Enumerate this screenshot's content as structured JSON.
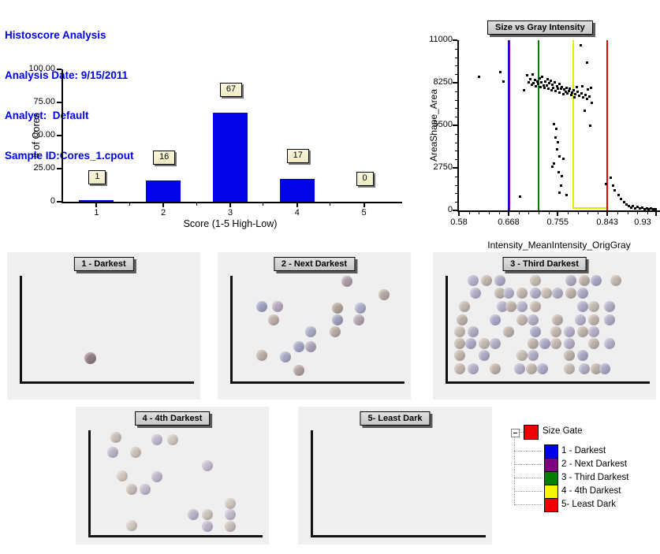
{
  "header": {
    "title": "Histoscore Analysis",
    "analysis_date": "Analysis Date: 9/15/2011",
    "analyst": "Analyst:  Default",
    "sample_id": "Sample ID:Cores_1.cpout"
  },
  "colors": {
    "header_text": "#0000f0",
    "bar_fill": "#0404e8",
    "gate_blue": "#2404c8",
    "gate_purple": "#800080",
    "gate_green": "#008000",
    "gate_yellow": "#e8e800",
    "gate_red": "#f00000",
    "panel_bg": "#f0eff0"
  },
  "chart_data": [
    {
      "type": "bar",
      "title": "",
      "categories": [
        "1",
        "2",
        "3",
        "4",
        "5"
      ],
      "values": [
        1,
        16,
        67,
        17,
        0
      ],
      "value_labels": [
        "1",
        "16",
        "67",
        "17",
        "0"
      ],
      "xlabel": "Score (1-5 High-Low)",
      "ylabel": "# of Cores",
      "ylim": [
        0,
        100
      ],
      "yticks": [
        0,
        25,
        50,
        75,
        100
      ],
      "ytick_labels": [
        "0",
        "25.00",
        "50.00",
        "75.00",
        "100.00"
      ],
      "grid": false,
      "bar_color": "#0404e8"
    },
    {
      "type": "scatter",
      "title": "Size vs Gray Intensity",
      "xlabel": "Intensity_MeanIntensity_OrigGray",
      "ylabel": "AreaShape_Area",
      "xlim": [
        0.58,
        0.935
      ],
      "ylim": [
        0,
        11000
      ],
      "xticks": [
        0.58,
        0.668,
        0.755,
        0.843,
        0.93
      ],
      "xtick_labels": [
        "0.58",
        "0.668",
        "0.755",
        "0.843",
        "0.93"
      ],
      "yticks": [
        0,
        2750,
        5500,
        8250,
        11000
      ],
      "ytick_labels": [
        "0",
        "2750",
        "5500",
        "8250",
        "11000"
      ],
      "grid": false,
      "marker": "square",
      "marker_color": "#000000",
      "gates": {
        "blue_line_x": 0.668,
        "purple_line_x": 0.6695,
        "green_line_x": 0.721,
        "yellow_box_x": [
          0.782,
          0.84
        ],
        "yellow_box_y": [
          80,
          11000
        ],
        "red_line_x": 0.843
      },
      "points": [
        [
          0.615,
          8650
        ],
        [
          0.652,
          8980
        ],
        [
          0.658,
          8350
        ],
        [
          0.688,
          900
        ],
        [
          0.695,
          7800
        ],
        [
          0.7,
          8750
        ],
        [
          0.703,
          8300
        ],
        [
          0.706,
          8520
        ],
        [
          0.708,
          8150
        ],
        [
          0.71,
          8820
        ],
        [
          0.712,
          8230
        ],
        [
          0.714,
          8460
        ],
        [
          0.716,
          8050
        ],
        [
          0.718,
          8330
        ],
        [
          0.72,
          8180
        ],
        [
          0.722,
          8540
        ],
        [
          0.724,
          7980
        ],
        [
          0.726,
          8280
        ],
        [
          0.727,
          8640
        ],
        [
          0.729,
          8120
        ],
        [
          0.731,
          7930
        ],
        [
          0.733,
          8370
        ],
        [
          0.735,
          8080
        ],
        [
          0.736,
          8510
        ],
        [
          0.738,
          7870
        ],
        [
          0.74,
          8230
        ],
        [
          0.742,
          8420
        ],
        [
          0.744,
          7780
        ],
        [
          0.745,
          8130
        ],
        [
          0.747,
          7960
        ],
        [
          0.749,
          8310
        ],
        [
          0.751,
          7720
        ],
        [
          0.753,
          8060
        ],
        [
          0.755,
          7910
        ],
        [
          0.757,
          8210
        ],
        [
          0.758,
          7640
        ],
        [
          0.76,
          7870
        ],
        [
          0.762,
          8010
        ],
        [
          0.764,
          7540
        ],
        [
          0.766,
          7820
        ],
        [
          0.768,
          7680
        ],
        [
          0.77,
          7930
        ],
        [
          0.772,
          7570
        ],
        [
          0.774,
          7720
        ],
        [
          0.776,
          7870
        ],
        [
          0.778,
          7480
        ],
        [
          0.78,
          7630
        ],
        [
          0.782,
          7790
        ],
        [
          0.784,
          7350
        ],
        [
          0.786,
          7530
        ],
        [
          0.788,
          7980
        ],
        [
          0.79,
          7670
        ],
        [
          0.793,
          7430
        ],
        [
          0.796,
          7580
        ],
        [
          0.798,
          8060
        ],
        [
          0.8,
          7330
        ],
        [
          0.803,
          7480
        ],
        [
          0.806,
          7230
        ],
        [
          0.808,
          7850
        ],
        [
          0.81,
          7380
        ],
        [
          0.813,
          7960
        ],
        [
          0.795,
          10700
        ],
        [
          0.806,
          9580
        ],
        [
          0.802,
          6480
        ],
        [
          0.812,
          5520
        ],
        [
          0.815,
          6960
        ],
        [
          0.748,
          5620
        ],
        [
          0.752,
          5280
        ],
        [
          0.75,
          4720
        ],
        [
          0.755,
          4420
        ],
        [
          0.753,
          3960
        ],
        [
          0.757,
          3520
        ],
        [
          0.748,
          3080
        ],
        [
          0.745,
          2870
        ],
        [
          0.756,
          2520
        ],
        [
          0.76,
          1620
        ],
        [
          0.758,
          1160
        ],
        [
          0.762,
          2260
        ],
        [
          0.764,
          3340
        ],
        [
          0.77,
          1000
        ],
        [
          0.84,
          1720
        ],
        [
          0.848,
          2120
        ],
        [
          0.852,
          1630
        ],
        [
          0.856,
          1320
        ],
        [
          0.862,
          1010
        ],
        [
          0.867,
          760
        ],
        [
          0.872,
          560
        ],
        [
          0.876,
          410
        ],
        [
          0.88,
          310
        ],
        [
          0.884,
          210
        ],
        [
          0.888,
          290
        ],
        [
          0.892,
          160
        ],
        [
          0.896,
          230
        ],
        [
          0.9,
          130
        ],
        [
          0.904,
          190
        ],
        [
          0.908,
          110
        ],
        [
          0.912,
          170
        ],
        [
          0.916,
          95
        ],
        [
          0.92,
          150
        ],
        [
          0.924,
          80
        ],
        [
          0.928,
          120
        ]
      ]
    }
  ],
  "panels": [
    {
      "title": "1 - Darkest",
      "core_count": 1,
      "palette": [
        "#8d7a7e"
      ],
      "dots": [
        [
          43,
          72
        ]
      ]
    },
    {
      "title": "2 - Next Darkest",
      "core_count": 16,
      "palette": [
        "#a89aa4",
        "#b2a79e",
        "#9aa0bd",
        "#b3a6ba",
        "#ad9f93",
        "#a7a9c6",
        "#baaba1",
        "#9d9cb8",
        "#b0a3ad",
        "#a5a8c2",
        "#b5a89f",
        "#9fa2bf",
        "#aaa0b5",
        "#b8ada3",
        "#a3a5c0",
        "#ae9f98"
      ],
      "dots": [
        [
          67,
          20
        ],
        [
          86,
          29
        ],
        [
          23,
          37
        ],
        [
          31,
          37
        ],
        [
          62,
          38
        ],
        [
          74,
          38
        ],
        [
          29,
          46
        ],
        [
          62,
          46
        ],
        [
          73,
          46
        ],
        [
          48,
          54
        ],
        [
          61,
          54
        ],
        [
          42,
          64
        ],
        [
          48,
          64
        ],
        [
          23,
          70
        ],
        [
          35,
          71
        ],
        [
          42,
          80
        ]
      ]
    },
    {
      "title": "3 - Third Darkest",
      "core_count": 67,
      "palette": [
        "#b4aec6",
        "#beb2a8",
        "#aaa8c4",
        "#c2b8ae",
        "#b0abc0",
        "#b9aea4",
        "#a6a6c2",
        "#c0b4ab",
        "#b2acc3",
        "#bbb0a6"
      ],
      "dots": [
        [
          18,
          19
        ],
        [
          24,
          19
        ],
        [
          30,
          19
        ],
        [
          46,
          19
        ],
        [
          62,
          19
        ],
        [
          68,
          19
        ],
        [
          73,
          19
        ],
        [
          82,
          19
        ],
        [
          19,
          28
        ],
        [
          30,
          28
        ],
        [
          34,
          28
        ],
        [
          40,
          28
        ],
        [
          46,
          28
        ],
        [
          51,
          28
        ],
        [
          56,
          28
        ],
        [
          62,
          28
        ],
        [
          67,
          28
        ],
        [
          14,
          37
        ],
        [
          31,
          37
        ],
        [
          35,
          37
        ],
        [
          40,
          37
        ],
        [
          46,
          37
        ],
        [
          67,
          37
        ],
        [
          72,
          37
        ],
        [
          79,
          37
        ],
        [
          13,
          46
        ],
        [
          28,
          46
        ],
        [
          40,
          46
        ],
        [
          45,
          46
        ],
        [
          56,
          46
        ],
        [
          66,
          46
        ],
        [
          72,
          46
        ],
        [
          79,
          46
        ],
        [
          12,
          54
        ],
        [
          18,
          54
        ],
        [
          34,
          54
        ],
        [
          46,
          54
        ],
        [
          55,
          54
        ],
        [
          61,
          54
        ],
        [
          67,
          54
        ],
        [
          72,
          54
        ],
        [
          12,
          62
        ],
        [
          17,
          62
        ],
        [
          23,
          62
        ],
        [
          28,
          62
        ],
        [
          45,
          62
        ],
        [
          50,
          62
        ],
        [
          55,
          62
        ],
        [
          61,
          62
        ],
        [
          72,
          62
        ],
        [
          79,
          62
        ],
        [
          12,
          70
        ],
        [
          23,
          70
        ],
        [
          40,
          70
        ],
        [
          45,
          70
        ],
        [
          61,
          70
        ],
        [
          67,
          70
        ],
        [
          12,
          79
        ],
        [
          18,
          79
        ],
        [
          28,
          79
        ],
        [
          39,
          79
        ],
        [
          44,
          79
        ],
        [
          49,
          79
        ],
        [
          61,
          79
        ],
        [
          68,
          79
        ],
        [
          73,
          79
        ],
        [
          77,
          79
        ]
      ]
    },
    {
      "title": "4 - 4th Darkest",
      "core_count": 17,
      "palette": [
        "#c6bcb4",
        "#bdb6c8",
        "#cec4ba",
        "#b8b2c4",
        "#c9c0b6",
        "#c2bac9",
        "#d0c6bc",
        "#bab4c6"
      ],
      "dots": [
        [
          21,
          22
        ],
        [
          42,
          24
        ],
        [
          50,
          24
        ],
        [
          19,
          33
        ],
        [
          31,
          33
        ],
        [
          68,
          43
        ],
        [
          24,
          50
        ],
        [
          42,
          51
        ],
        [
          29,
          60
        ],
        [
          36,
          60
        ],
        [
          80,
          70
        ],
        [
          61,
          78
        ],
        [
          68,
          78
        ],
        [
          80,
          78
        ],
        [
          29,
          86
        ],
        [
          68,
          87
        ],
        [
          80,
          87
        ]
      ]
    },
    {
      "title": "5- Least Dark",
      "core_count": 0,
      "palette": [
        "#c6bcb4"
      ],
      "dots": []
    }
  ],
  "legend": {
    "root": {
      "label": "Size Gate",
      "color": "#f00000",
      "expander": "minus"
    },
    "items": [
      {
        "label": "1 - Darkest",
        "color": "#0000f0"
      },
      {
        "label": "2 - Next Darkest",
        "color": "#800080"
      },
      {
        "label": "3 - Third Darkest",
        "color": "#008000"
      },
      {
        "label": "4 - 4th Darkest",
        "color": "#f5f500"
      },
      {
        "label": "5- Least Dark",
        "color": "#f00000"
      }
    ]
  }
}
